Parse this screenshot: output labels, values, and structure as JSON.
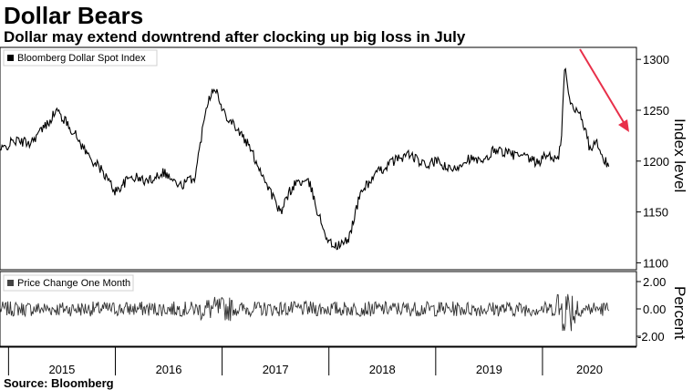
{
  "header": {
    "title": "Dollar Bears",
    "subtitle": "Dollar may extend downtrend after clocking up big loss in July"
  },
  "footer": {
    "source": "Source: Bloomberg"
  },
  "chart_data": [
    {
      "type": "line",
      "legend": "Bloomberg Dollar Spot Index",
      "ylabel": "Index level",
      "yticks": [
        "1100",
        "1150",
        "1200",
        "1250",
        "1300"
      ],
      "ylim": [
        1095,
        1310
      ],
      "annotation": "red arrow pointing down along recent decline",
      "x_ticks": [
        "2015",
        "2016",
        "2017",
        "2018",
        "2019",
        "2020"
      ],
      "x": [
        2014.92,
        2015.05,
        2015.2,
        2015.35,
        2015.45,
        2015.6,
        2015.75,
        2015.88,
        2016.0,
        2016.15,
        2016.3,
        2016.45,
        2016.6,
        2016.75,
        2016.85,
        2016.93,
        2017.0,
        2017.1,
        2017.25,
        2017.4,
        2017.55,
        2017.62,
        2017.7,
        2017.82,
        2017.9,
        2018.0,
        2018.08,
        2018.18,
        2018.3,
        2018.45,
        2018.6,
        2018.75,
        2018.9,
        2019.0,
        2019.15,
        2019.3,
        2019.45,
        2019.55,
        2019.7,
        2019.85,
        2019.95,
        2020.05,
        2020.15,
        2020.18,
        2020.21,
        2020.25,
        2020.3,
        2020.35,
        2020.45,
        2020.5,
        2020.55,
        2020.62
      ],
      "y": [
        1210,
        1220,
        1218,
        1235,
        1250,
        1230,
        1205,
        1190,
        1170,
        1185,
        1180,
        1190,
        1175,
        1185,
        1255,
        1275,
        1250,
        1238,
        1215,
        1182,
        1148,
        1168,
        1180,
        1178,
        1148,
        1120,
        1116,
        1122,
        1170,
        1188,
        1200,
        1207,
        1195,
        1200,
        1190,
        1203,
        1198,
        1212,
        1207,
        1203,
        1198,
        1207,
        1200,
        1230,
        1295,
        1260,
        1250,
        1250,
        1210,
        1220,
        1205,
        1195
      ]
    },
    {
      "type": "line",
      "legend": "Price Change One Month",
      "ylabel": "Percent",
      "yticks": [
        "2.00",
        "0.00",
        "-2.00"
      ],
      "ylim": [
        -2.6,
        2.6
      ]
    }
  ]
}
